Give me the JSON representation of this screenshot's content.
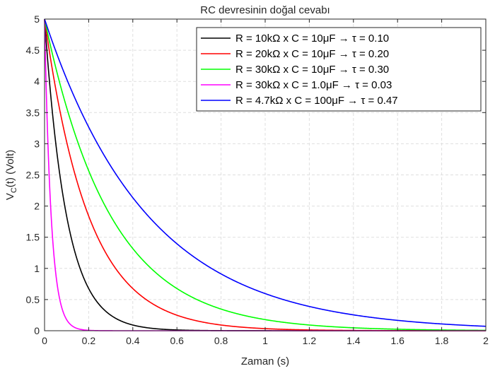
{
  "chart_data": {
    "type": "line",
    "title": "RC devresinin doğal cevabı",
    "xlabel": "Zaman (s)",
    "ylabel": {
      "base": "V",
      "sub": "C",
      "rest": "(t) (Volt)"
    },
    "xlim": [
      0,
      2
    ],
    "ylim": [
      0,
      5
    ],
    "xticks": [
      0,
      0.2,
      0.4,
      0.6,
      0.8,
      1,
      1.2,
      1.4,
      1.6,
      1.8,
      2
    ],
    "xtick_labels": [
      "0",
      "0.2",
      "0.4",
      "0.6",
      "0.8",
      "1",
      "1.2",
      "1.4",
      "1.6",
      "1.8",
      "2"
    ],
    "yticks": [
      0,
      0.5,
      1,
      1.5,
      2,
      2.5,
      3,
      3.5,
      4,
      4.5,
      5
    ],
    "ytick_labels": [
      "0",
      "0.5",
      "1",
      "1.5",
      "2",
      "2.5",
      "3",
      "3.5",
      "4",
      "4.5",
      "5"
    ],
    "grid": true,
    "legend_position": "top-right",
    "initial_voltage": 5,
    "series": [
      {
        "name": "R = 10kΩ  x  C = 10μF  →  τ = 0.10",
        "tau": 0.1,
        "color": "#000000"
      },
      {
        "name": "R = 20kΩ  x  C = 10μF  →  τ = 0.20",
        "tau": 0.2,
        "color": "#ff0000"
      },
      {
        "name": "R = 30kΩ  x  C = 10μF  →  τ = 0.30",
        "tau": 0.3,
        "color": "#00ff00"
      },
      {
        "name": "R = 30kΩ  x  C = 1.0μF  →  τ = 0.03",
        "tau": 0.03,
        "color": "#ff00ff"
      },
      {
        "name": "R = 4.7kΩ  x  C = 100μF  →  τ = 0.47",
        "tau": 0.47,
        "color": "#0000ff"
      }
    ]
  }
}
